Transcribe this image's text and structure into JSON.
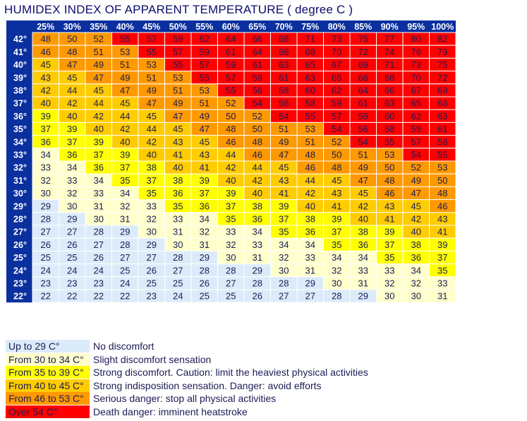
{
  "title": "HUMIDEX INDEX OF APPARENT TEMPERATURE ( degree C )",
  "chart_data": {
    "type": "table",
    "title": "HUMIDEX INDEX OF APPARENT TEMPERATURE ( degree C )",
    "columns": [
      "25%",
      "30%",
      "35%",
      "40%",
      "45%",
      "50%",
      "55%",
      "60%",
      "65%",
      "70%",
      "75%",
      "80%",
      "85%",
      "90%",
      "95%",
      "100%"
    ],
    "rows": [
      "42°",
      "41°",
      "40°",
      "39°",
      "38°",
      "37°",
      "36°",
      "35°",
      "34°",
      "33°",
      "32°",
      "31°",
      "30°",
      "29°",
      "28°",
      "27°",
      "26°",
      "25°",
      "24°",
      "23°",
      "22°"
    ],
    "values": [
      [
        48,
        50,
        52,
        55,
        57,
        59,
        62,
        64,
        66,
        68,
        71,
        73,
        75,
        77,
        80,
        82
      ],
      [
        46,
        48,
        51,
        53,
        55,
        57,
        59,
        61,
        64,
        66,
        68,
        70,
        72,
        74,
        76,
        79
      ],
      [
        45,
        47,
        49,
        51,
        53,
        55,
        57,
        59,
        61,
        63,
        65,
        67,
        69,
        71,
        73,
        75
      ],
      [
        43,
        45,
        47,
        49,
        51,
        53,
        55,
        57,
        59,
        61,
        63,
        65,
        66,
        68,
        70,
        72
      ],
      [
        42,
        44,
        45,
        47,
        49,
        51,
        53,
        55,
        56,
        58,
        60,
        62,
        64,
        66,
        67,
        69
      ],
      [
        40,
        42,
        44,
        45,
        47,
        49,
        51,
        52,
        54,
        56,
        58,
        59,
        61,
        63,
        65,
        66
      ],
      [
        39,
        40,
        42,
        44,
        45,
        47,
        49,
        50,
        52,
        54,
        55,
        57,
        59,
        60,
        62,
        63
      ],
      [
        37,
        39,
        40,
        42,
        44,
        45,
        47,
        48,
        50,
        51,
        53,
        54,
        56,
        58,
        59,
        61
      ],
      [
        36,
        37,
        39,
        40,
        42,
        43,
        45,
        46,
        48,
        49,
        51,
        52,
        54,
        55,
        57,
        58
      ],
      [
        34,
        36,
        37,
        39,
        40,
        41,
        43,
        44,
        46,
        47,
        48,
        50,
        51,
        53,
        54,
        55
      ],
      [
        33,
        34,
        36,
        37,
        38,
        40,
        41,
        42,
        44,
        45,
        46,
        48,
        49,
        50,
        52,
        53
      ],
      [
        32,
        33,
        34,
        35,
        37,
        38,
        39,
        40,
        42,
        43,
        44,
        45,
        47,
        48,
        49,
        50
      ],
      [
        30,
        32,
        33,
        34,
        35,
        36,
        37,
        39,
        40,
        41,
        42,
        43,
        45,
        46,
        47,
        48
      ],
      [
        29,
        30,
        31,
        32,
        33,
        35,
        36,
        37,
        38,
        39,
        40,
        41,
        42,
        43,
        45,
        46
      ],
      [
        28,
        29,
        30,
        31,
        32,
        33,
        34,
        35,
        36,
        37,
        38,
        39,
        40,
        41,
        42,
        43
      ],
      [
        27,
        27,
        28,
        29,
        30,
        31,
        32,
        33,
        34,
        35,
        36,
        37,
        38,
        39,
        40,
        41
      ],
      [
        26,
        26,
        27,
        28,
        29,
        30,
        31,
        32,
        33,
        34,
        34,
        35,
        36,
        37,
        38,
        39
      ],
      [
        25,
        25,
        26,
        27,
        27,
        28,
        29,
        30,
        31,
        32,
        33,
        34,
        34,
        35,
        36,
        37
      ],
      [
        24,
        24,
        24,
        25,
        26,
        27,
        28,
        28,
        29,
        30,
        31,
        32,
        33,
        33,
        34,
        35
      ],
      [
        23,
        23,
        23,
        24,
        25,
        25,
        26,
        27,
        28,
        28,
        29,
        30,
        31,
        32,
        32,
        33
      ],
      [
        22,
        22,
        22,
        22,
        23,
        24,
        25,
        25,
        26,
        27,
        27,
        28,
        29,
        30,
        30,
        31
      ]
    ]
  },
  "colors": {
    "header_bg": "#0a2f9e",
    "header_text": "#ffffff",
    "cell_text": "#1b1b55",
    "grid_line": "#ffffff"
  },
  "legend": [
    {
      "range": "Up to 29 C°",
      "description": "No discomfort",
      "color": "#dcebf9",
      "max": 29
    },
    {
      "range": "From 30 to 34 C°",
      "description": "Slight discomfort sensation",
      "color": "#ffffcc",
      "max": 34
    },
    {
      "range": "From 35 to 39 C°",
      "description": "Strong discomfort. Caution: limit the heaviest physical activities",
      "color": "#ffff00",
      "max": 39
    },
    {
      "range": "From 40 to 45 C°",
      "description": "Strong indisposition sensation. Danger: avoid efforts",
      "color": "#ffcc00",
      "max": 45
    },
    {
      "range": "From 46 to 53 C°",
      "description": "Serious danger: stop all physical activities",
      "color": "#ff9900",
      "max": 53
    },
    {
      "range": "Over 54 C°",
      "description": "Death danger: imminent heatstroke",
      "color": "#ff0000",
      "max": 999
    }
  ]
}
